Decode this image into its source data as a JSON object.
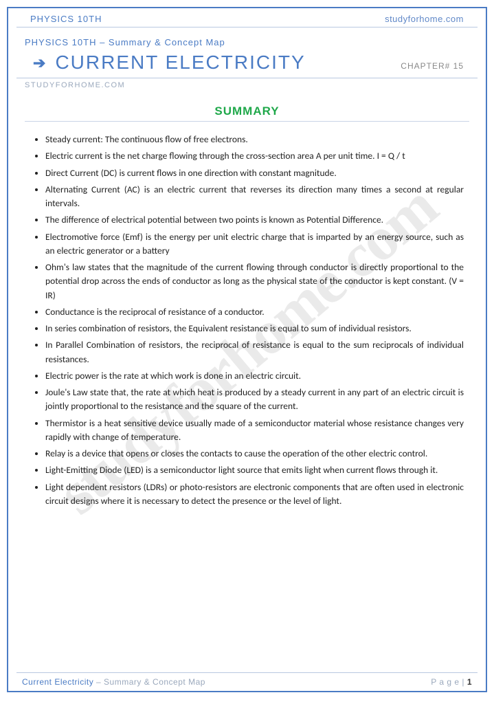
{
  "colors": {
    "border": "#4a7bc4",
    "header_text": "#4a7bc4",
    "header_link": "#6088c8",
    "divider": "#b8c8e0",
    "summary_green": "#1fa84a",
    "muted": "#9aa8bc",
    "body_text": "#222222",
    "watermark": "rgba(160,160,160,0.22)"
  },
  "typography": {
    "title_fontsize": 28,
    "summary_title_fontsize": 17,
    "body_fontsize": 13.5,
    "header_fontsize": 13
  },
  "header": {
    "left": "PHYSICS 10TH",
    "right": "studyforhome.com"
  },
  "breadcrumb": "PHYSICS 10TH – Summary & Concept Map",
  "title": "CURRENT ELECTRICITY",
  "chapter": "CHAPTER# 15",
  "sub_site": "STUDYFORHOME.COM",
  "summary_heading": "SUMMARY",
  "watermark": "studyforhome.com",
  "bullets": [
    "Steady current: The continuous flow of free electrons.",
    "Electric current is the net charge flowing through the cross-section area A per unit time. I = Q / t",
    "Direct Current (DC) is current flows in one direction with constant magnitude.",
    "Alternating Current (AC) is an electric current that reverses its direction many times a second at regular intervals.",
    "The difference of electrical potential between two points is known as Potential Difference.",
    "Electromotive force (Emf) is the energy per unit electric charge that is imparted by an energy source, such as an electric generator or a battery",
    "Ohm's law states that the magnitude of the current flowing through conductor is directly proportional to the potential drop across the ends of conductor as long as the physical state of the conductor is kept constant. (V = IR)",
    "Conductance is the reciprocal of resistance of a conductor.",
    "In series combination of resistors, the Equivalent resistance is equal to sum of individual resistors.",
    "In Parallel Combination of resistors, the reciprocal of resistance is equal to the sum reciprocals of individual resistances.",
    "Electric power is the rate at which work is done in an electric circuit.",
    "Joule's Law state that, the rate at which heat is produced by a steady current in any part of an electric circuit is jointly proportional to the resistance and the square of the current.",
    "Thermistor is a heat sensitive device usually made of a semiconductor material whose resistance changes very rapidly with change of temperature.",
    "Relay is a device that opens or closes the contacts to cause the operation of the other electric control.",
    "Light-Emitting Diode (LED) is a semiconductor light source that emits light when current flows through it.",
    "Light dependent resistors (LDRs) or photo-resistors are electronic components that are often used in electronic circuit designs where it is necessary to detect the presence or the level of light."
  ],
  "footer": {
    "left_a": "Current Electricity",
    "left_b": " – Summary & Concept Map",
    "right_label": "P a g e  | ",
    "page_num": "1"
  }
}
